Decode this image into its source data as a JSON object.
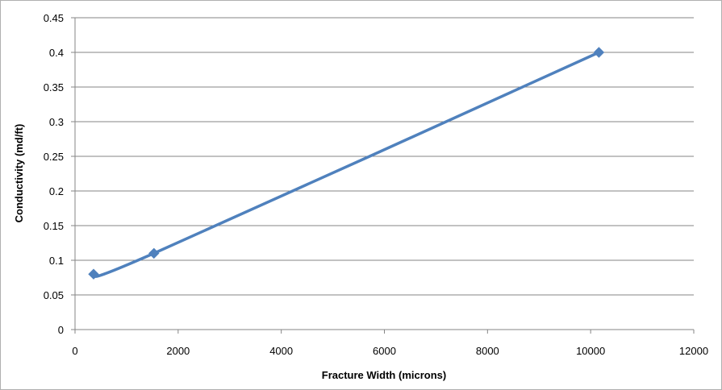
{
  "chart_data": {
    "type": "line",
    "title": "",
    "xlabel": "Fracture Width (microns)",
    "ylabel": "Conductivity (md/ft)",
    "xlim": [
      0,
      12000
    ],
    "ylim": [
      0,
      0.45
    ],
    "x_ticks": [
      "0",
      "2000",
      "4000",
      "6000",
      "8000",
      "10000",
      "12000"
    ],
    "y_ticks": [
      "0",
      "0.05",
      "0.1",
      "0.15",
      "0.2",
      "0.25",
      "0.3",
      "0.35",
      "0.4",
      "0.45"
    ],
    "grid": "horizontal",
    "legend": "none",
    "series": [
      {
        "x": [
          360,
          1530,
          10160
        ],
        "y": [
          0.08,
          0.11,
          0.4
        ],
        "color": "#4f81bd",
        "marker": "diamond",
        "smooth": true
      }
    ]
  }
}
